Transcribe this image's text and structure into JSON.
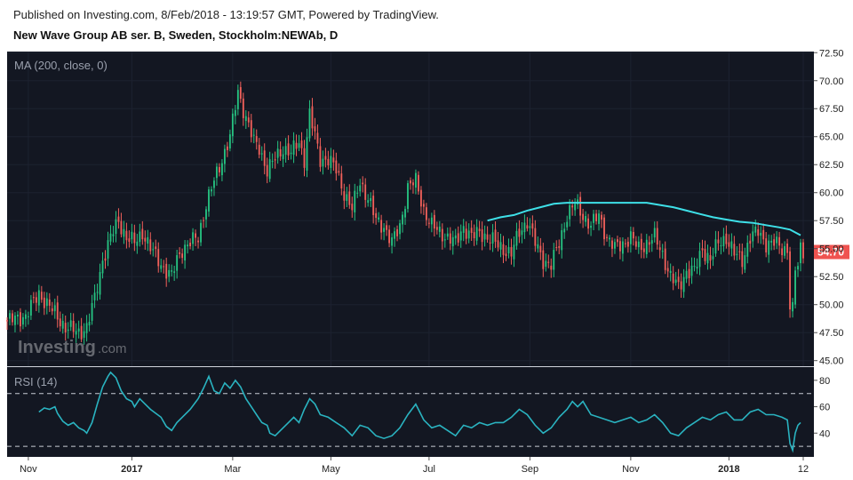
{
  "header": {
    "published": "Published on Investing.com, 8/Feb/2018 - 13:19:57 GMT, Powered by TradingView.",
    "instrument": "New Wave Group AB ser. B, Sweden, Stockholm:NEWAb, D"
  },
  "watermark": {
    "brand": "Investing",
    "suffix": ".com"
  },
  "colors": {
    "background": "#131722",
    "up": "#26c281",
    "down": "#f0605a",
    "ma": "#3ee0e8",
    "rsi": "#2ab3c0",
    "last_price_tag": "#ef5350"
  },
  "chart_data": {
    "type": "candlestick",
    "price_panel": {
      "indicator_label": "MA (200, close, 0)",
      "ylim": [
        44.5,
        72.6
      ],
      "yticks": [
        "72.50",
        "70.00",
        "67.50",
        "65.00",
        "62.50",
        "60.00",
        "57.50",
        "55.00",
        "52.50",
        "50.00",
        "47.50",
        "45.00"
      ],
      "last_price": "54.70",
      "close_path": [
        [
          0,
          48.5
        ],
        [
          7,
          49
        ],
        [
          12,
          51
        ],
        [
          17,
          49.5
        ],
        [
          22,
          48
        ],
        [
          27,
          47.5
        ],
        [
          30,
          48
        ],
        [
          33,
          50.5
        ],
        [
          36,
          54
        ],
        [
          39,
          56
        ],
        [
          42,
          57.5
        ],
        [
          45,
          56
        ],
        [
          48,
          55.5
        ],
        [
          51,
          56.5
        ],
        [
          54,
          55
        ],
        [
          57,
          54
        ],
        [
          60,
          53
        ],
        [
          62,
          52.5
        ],
        [
          64,
          54
        ],
        [
          66,
          55
        ],
        [
          69,
          55.5
        ],
        [
          72,
          56
        ],
        [
          75,
          59
        ],
        [
          78,
          61
        ],
        [
          81,
          63
        ],
        [
          84,
          65
        ],
        [
          87,
          69
        ],
        [
          89,
          67.5
        ],
        [
          91,
          66
        ],
        [
          93,
          64.5
        ],
        [
          95,
          64
        ],
        [
          98,
          62
        ],
        [
          101,
          63
        ],
        [
          104,
          64
        ],
        [
          107,
          63.5
        ],
        [
          110,
          64.5
        ],
        [
          112,
          63
        ],
        [
          114,
          67
        ],
        [
          116,
          65
        ],
        [
          118,
          63
        ],
        [
          121,
          63
        ],
        [
          124,
          62
        ],
        [
          127,
          60
        ],
        [
          130,
          58.5
        ],
        [
          133,
          61
        ],
        [
          136,
          59.5
        ],
        [
          139,
          57.5
        ],
        [
          142,
          57
        ],
        [
          145,
          55.5
        ],
        [
          148,
          57
        ],
        [
          151,
          60.5
        ],
        [
          154,
          61
        ],
        [
          157,
          58.5
        ],
        [
          160,
          57
        ],
        [
          163,
          56.5
        ],
        [
          166,
          56
        ],
        [
          169,
          55.5
        ],
        [
          172,
          57
        ],
        [
          175,
          56
        ],
        [
          178,
          56.5
        ],
        [
          181,
          56
        ],
        [
          184,
          55.5
        ],
        [
          187,
          55
        ],
        [
          190,
          54.5
        ],
        [
          193,
          56.5
        ],
        [
          196,
          57.5
        ],
        [
          199,
          55.5
        ],
        [
          202,
          54
        ],
        [
          205,
          53.5
        ],
        [
          208,
          55.5
        ],
        [
          211,
          58
        ],
        [
          214,
          59
        ],
        [
          217,
          58
        ],
        [
          220,
          57
        ],
        [
          223,
          58
        ],
        [
          226,
          56
        ],
        [
          229,
          55
        ],
        [
          232,
          55.5
        ],
        [
          235,
          56
        ],
        [
          238,
          55
        ],
        [
          241,
          55.5
        ],
        [
          244,
          56
        ],
        [
          247,
          54.5
        ],
        [
          250,
          52.5
        ],
        [
          253,
          51.5
        ],
        [
          256,
          53
        ],
        [
          259,
          53
        ],
        [
          262,
          55
        ],
        [
          265,
          54
        ],
        [
          268,
          55.5
        ],
        [
          271,
          56
        ],
        [
          274,
          54.5
        ],
        [
          277,
          54
        ],
        [
          280,
          56
        ],
        [
          283,
          56.5
        ],
        [
          286,
          55.5
        ],
        [
          289,
          55.5
        ],
        [
          292,
          55
        ],
        [
          294,
          55
        ],
        [
          295,
          50
        ],
        [
          296,
          49.5
        ],
        [
          297,
          53
        ],
        [
          298,
          53.5
        ],
        [
          299,
          55
        ],
        [
          300,
          54.7
        ]
      ],
      "ma": [
        [
          181,
          57.5
        ],
        [
          186,
          57.8
        ],
        [
          191,
          58.0
        ],
        [
          196,
          58.4
        ],
        [
          201,
          58.7
        ],
        [
          206,
          59.0
        ],
        [
          211,
          59.1
        ],
        [
          216,
          59.1
        ],
        [
          221,
          59.1
        ],
        [
          226,
          59.1
        ],
        [
          231,
          59.1
        ],
        [
          236,
          59.1
        ],
        [
          241,
          59.1
        ],
        [
          246,
          58.9
        ],
        [
          251,
          58.7
        ],
        [
          256,
          58.4
        ],
        [
          261,
          58.1
        ],
        [
          266,
          57.8
        ],
        [
          271,
          57.6
        ],
        [
          276,
          57.4
        ],
        [
          281,
          57.3
        ],
        [
          286,
          57.1
        ],
        [
          291,
          56.9
        ],
        [
          295,
          56.7
        ],
        [
          299,
          56.2
        ]
      ]
    },
    "rsi_panel": {
      "indicator_label": "RSI (14)",
      "ylim": [
        22,
        90
      ],
      "levels": [
        30,
        70
      ],
      "yticks": [
        "80",
        "60",
        "40"
      ],
      "values": [
        [
          12,
          56
        ],
        [
          14,
          59
        ],
        [
          16,
          58
        ],
        [
          18,
          60
        ],
        [
          19,
          55
        ],
        [
          21,
          49
        ],
        [
          23,
          46
        ],
        [
          25,
          48
        ],
        [
          27,
          44
        ],
        [
          29,
          42
        ],
        [
          30,
          40
        ],
        [
          32,
          48
        ],
        [
          34,
          62
        ],
        [
          36,
          75
        ],
        [
          38,
          83
        ],
        [
          39,
          86
        ],
        [
          41,
          82
        ],
        [
          43,
          72
        ],
        [
          45,
          66
        ],
        [
          47,
          64
        ],
        [
          48,
          60
        ],
        [
          50,
          66
        ],
        [
          52,
          62
        ],
        [
          54,
          58
        ],
        [
          56,
          55
        ],
        [
          58,
          52
        ],
        [
          60,
          45
        ],
        [
          62,
          42
        ],
        [
          64,
          48
        ],
        [
          66,
          52
        ],
        [
          69,
          58
        ],
        [
          72,
          66
        ],
        [
          74,
          74
        ],
        [
          76,
          83
        ],
        [
          78,
          72
        ],
        [
          80,
          70
        ],
        [
          82,
          78
        ],
        [
          84,
          74
        ],
        [
          86,
          80
        ],
        [
          88,
          75
        ],
        [
          90,
          66
        ],
        [
          92,
          60
        ],
        [
          94,
          54
        ],
        [
          96,
          48
        ],
        [
          98,
          46
        ],
        [
          99,
          40
        ],
        [
          101,
          38
        ],
        [
          103,
          42
        ],
        [
          106,
          48
        ],
        [
          108,
          52
        ],
        [
          110,
          48
        ],
        [
          112,
          58
        ],
        [
          114,
          66
        ],
        [
          116,
          62
        ],
        [
          118,
          54
        ],
        [
          121,
          52
        ],
        [
          124,
          48
        ],
        [
          127,
          44
        ],
        [
          130,
          38
        ],
        [
          133,
          46
        ],
        [
          136,
          44
        ],
        [
          139,
          38
        ],
        [
          142,
          36
        ],
        [
          145,
          38
        ],
        [
          148,
          44
        ],
        [
          151,
          54
        ],
        [
          154,
          62
        ],
        [
          157,
          50
        ],
        [
          160,
          44
        ],
        [
          163,
          46
        ],
        [
          166,
          42
        ],
        [
          169,
          38
        ],
        [
          172,
          46
        ],
        [
          175,
          44
        ],
        [
          178,
          48
        ],
        [
          181,
          46
        ],
        [
          184,
          48
        ],
        [
          187,
          48
        ],
        [
          190,
          52
        ],
        [
          193,
          58
        ],
        [
          196,
          54
        ],
        [
          199,
          46
        ],
        [
          202,
          40
        ],
        [
          205,
          44
        ],
        [
          208,
          52
        ],
        [
          211,
          58
        ],
        [
          213,
          64
        ],
        [
          215,
          60
        ],
        [
          217,
          64
        ],
        [
          220,
          54
        ],
        [
          223,
          52
        ],
        [
          226,
          50
        ],
        [
          229,
          48
        ],
        [
          232,
          50
        ],
        [
          235,
          52
        ],
        [
          238,
          48
        ],
        [
          241,
          50
        ],
        [
          244,
          54
        ],
        [
          247,
          48
        ],
        [
          250,
          40
        ],
        [
          253,
          38
        ],
        [
          256,
          44
        ],
        [
          259,
          48
        ],
        [
          262,
          52
        ],
        [
          265,
          50
        ],
        [
          268,
          54
        ],
        [
          271,
          56
        ],
        [
          274,
          50
        ],
        [
          277,
          50
        ],
        [
          280,
          56
        ],
        [
          283,
          58
        ],
        [
          286,
          54
        ],
        [
          289,
          54
        ],
        [
          292,
          52
        ],
        [
          294,
          50
        ],
        [
          295,
          32
        ],
        [
          296,
          27
        ],
        [
          297,
          40
        ],
        [
          298,
          46
        ],
        [
          299,
          48
        ]
      ]
    },
    "x_axis": {
      "range": [
        0,
        300
      ],
      "ticks": [
        {
          "label": "Nov",
          "pos": 8,
          "bold": false
        },
        {
          "label": "2017",
          "pos": 47,
          "bold": true
        },
        {
          "label": "Mar",
          "pos": 85,
          "bold": false
        },
        {
          "label": "May",
          "pos": 122,
          "bold": false
        },
        {
          "label": "Jul",
          "pos": 159,
          "bold": false
        },
        {
          "label": "Sep",
          "pos": 197,
          "bold": false
        },
        {
          "label": "Nov",
          "pos": 235,
          "bold": false
        },
        {
          "label": "2018",
          "pos": 272,
          "bold": true
        },
        {
          "label": "12",
          "pos": 300,
          "bold": false
        }
      ]
    }
  }
}
